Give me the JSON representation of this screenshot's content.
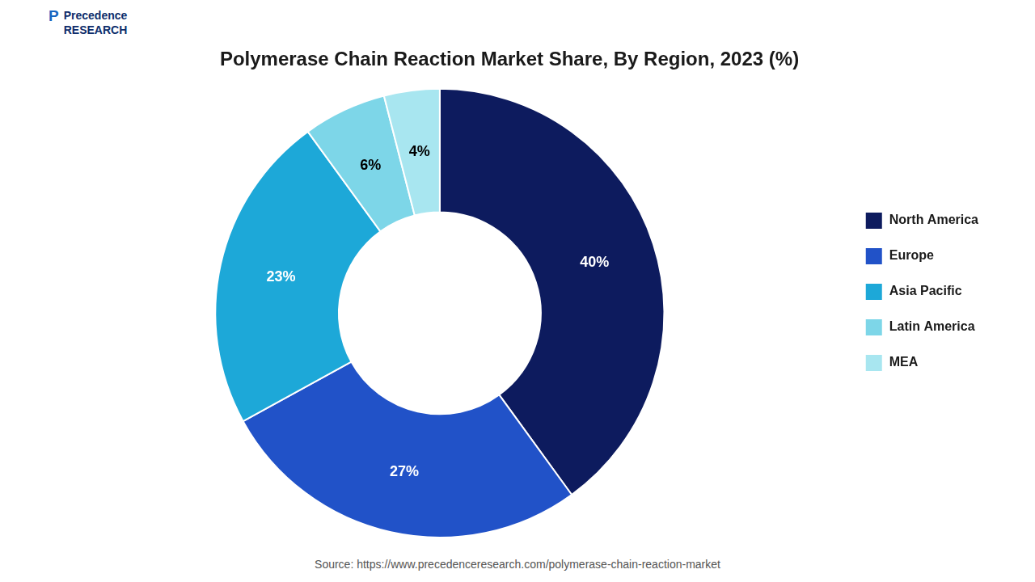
{
  "chart_data": {
    "type": "doughnut",
    "title": "Polymerase Chain Reaction Market Share, By Region, 2023 (%)",
    "categories": [
      "North America",
      "Europe",
      "Asia Pacific",
      "Latin America",
      "MEA"
    ],
    "values": [
      40,
      27,
      23,
      6,
      4
    ],
    "value_labels": [
      "40%",
      "27%",
      "23%",
      "6%",
      "4%"
    ],
    "colors": [
      "#0d1b5e",
      "#2152c8",
      "#1da8d8",
      "#7dd6e8",
      "#a8e6f0"
    ],
    "data_labels": true,
    "legend": "right",
    "annotations": [
      "P",
      "Precedence\nRESEARCH",
      "Source: https://www.precedenceresearch.com/polymerase-chain-reaction-market"
    ]
  }
}
